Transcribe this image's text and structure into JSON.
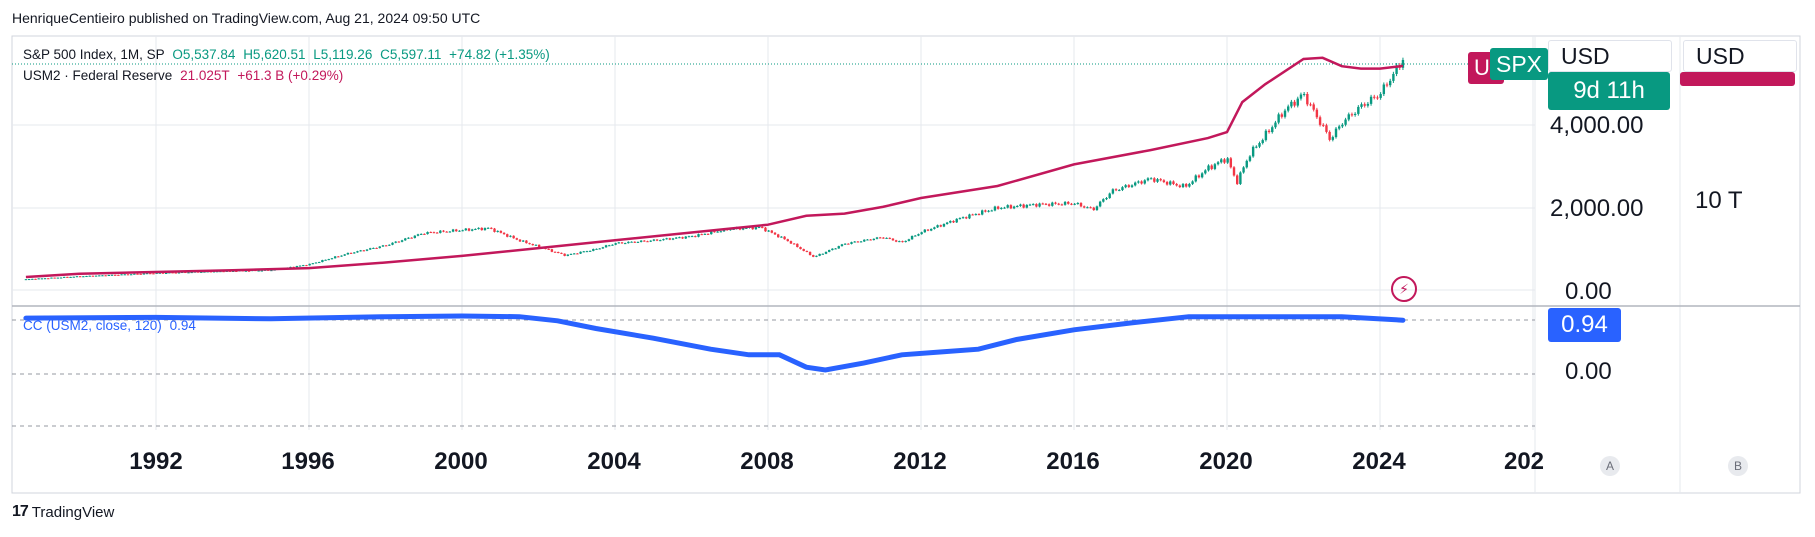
{
  "header": {
    "publisher": "HenriqueCentieiro published on TradingView.com, Aug 21, 2024 09:50 UTC"
  },
  "legend": {
    "spx_name": "S&P 500 Index, 1M, SP",
    "spx_o": "O5,537.84",
    "spx_h": "H5,620.51",
    "spx_l": "L5,119.26",
    "spx_c": "C5,597.11",
    "spx_chg": "+74.82 (+1.35%)",
    "m2_name": "USM2 · Federal Reserve",
    "m2_val": "21.025T",
    "m2_chg": "+61.3 B (+0.29%)",
    "cc_name": "CC (USM2, close, 120)",
    "cc_val": "0.94"
  },
  "price_scale": {
    "labels": [
      "4,000.00",
      "2,000.00",
      "0.00"
    ],
    "currency": "USD"
  },
  "m2_scale": {
    "labels": [
      "10 T"
    ],
    "currency": "USD"
  },
  "badges": {
    "spx": "SPX",
    "countdown": "9d 11h",
    "m2_partial": "U",
    "cc_value": "0.94",
    "cc_zero": "0.00"
  },
  "corner": {
    "a": "A",
    "b": "B"
  },
  "footer": {
    "brand": "TradingView",
    "logo": "17"
  },
  "colors": {
    "spx_up": "#089981",
    "spx_down": "#f23645",
    "m2": "#c2185b",
    "cc": "#2962ff",
    "grid": "#e6e8ee"
  },
  "chart_data": [
    {
      "type": "line",
      "title": "S&P 500 Index, 1M, SP",
      "x_ticks": [
        "1992",
        "1996",
        "2000",
        "2004",
        "2008",
        "2012",
        "2016",
        "2020",
        "2024",
        "202"
      ],
      "y_ticks": [
        "4,000.00",
        "2,000.00",
        "0.00"
      ],
      "ylim": [
        0,
        5700
      ],
      "series": [
        {
          "name": "S&P 500 Index",
          "x": [
            1988.6,
            1990,
            1992,
            1994,
            1995,
            1996,
            1997,
            1998,
            1999,
            2000.7,
            2001.5,
            2002.7,
            2003.5,
            2004,
            2005,
            2006,
            2007,
            2007.8,
            2008.5,
            2009.2,
            2010,
            2011,
            2011.5,
            2012,
            2013,
            2014,
            2015,
            2016,
            2016.5,
            2017,
            2018,
            2018.9,
            2019.5,
            2020,
            2020.25,
            2020.6,
            2021,
            2021.5,
            2022,
            2022.7,
            2023,
            2023.5,
            2024,
            2024.4,
            2024.6
          ],
          "values": [
            260,
            330,
            410,
            460,
            480,
            620,
            880,
            1080,
            1380,
            1500,
            1200,
            840,
            990,
            1130,
            1200,
            1300,
            1480,
            1520,
            1200,
            800,
            1120,
            1280,
            1150,
            1400,
            1730,
            1990,
            2070,
            2100,
            1950,
            2400,
            2700,
            2500,
            2950,
            3200,
            2600,
            3300,
            3750,
            4350,
            4750,
            3650,
            4050,
            4450,
            4750,
            5300,
            5597
          ]
        }
      ]
    },
    {
      "type": "line",
      "title": "USM2 · Federal Reserve",
      "y_ticks": [
        "10 T"
      ],
      "series": [
        {
          "name": "USM2 · Federal Reserve",
          "x": [
            1988.6,
            1990,
            1994,
            1996,
            1998,
            2000,
            2002,
            2004,
            2006,
            2008,
            2009,
            2010,
            2011,
            2012,
            2014,
            2016,
            2018,
            2019.5,
            2020,
            2020.4,
            2021,
            2022,
            2022.5,
            2023,
            2023.5,
            2024,
            2024.6
          ],
          "values": [
            2.9,
            3.2,
            3.5,
            3.7,
            4.2,
            4.8,
            5.5,
            6.2,
            6.9,
            7.6,
            8.4,
            8.6,
            9.2,
            10.0,
            11.0,
            12.8,
            14.0,
            15.0,
            15.5,
            18.0,
            19.5,
            21.6,
            21.7,
            21.0,
            20.8,
            20.8,
            21.025
          ]
        }
      ]
    },
    {
      "type": "line",
      "title": "CC (USM2, close, 120)",
      "y_ticks": [
        "0.00"
      ],
      "series": [
        {
          "name": "CC (USM2, close, 120)",
          "x": [
            1988.6,
            1992,
            1995,
            1998,
            2000,
            2001.5,
            2002.5,
            2003.5,
            2005,
            2006.5,
            2007.5,
            2008.3,
            2009,
            2009.5,
            2010.5,
            2011.5,
            2012.5,
            2013.5,
            2014.5,
            2016,
            2017.5,
            2019,
            2021,
            2023,
            2024.6
          ],
          "values": [
            0.97,
            0.98,
            0.96,
            0.99,
            1.0,
            0.99,
            0.93,
            0.82,
            0.68,
            0.52,
            0.44,
            0.44,
            0.26,
            0.22,
            0.32,
            0.44,
            0.48,
            0.52,
            0.66,
            0.8,
            0.9,
            0.99,
            0.99,
            0.99,
            0.94
          ]
        }
      ]
    }
  ]
}
